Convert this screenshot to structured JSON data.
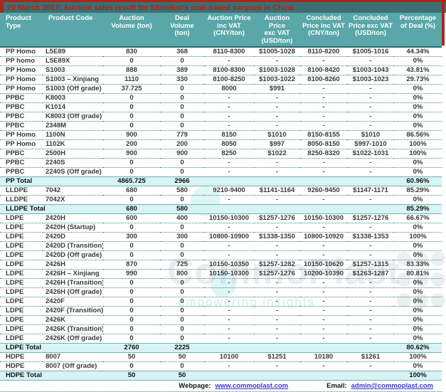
{
  "title": "20 March 2017: Auction sales result for Shenhua's coal-based cargoes in China",
  "colors": {
    "title_bg": "#3d6f72",
    "title_text": "#b32017",
    "header_bg": "#5aa7a9",
    "total_row_bg": "#d8f3f3",
    "red_border": "#a8271c",
    "link_color": "#3f36cf",
    "row_divider": "#3e8686"
  },
  "table": {
    "columns": [
      {
        "lines": [
          "Product",
          "Type"
        ]
      },
      {
        "lines": [
          "Product Code"
        ]
      },
      {
        "lines": [
          "Auction",
          "Volume (ton)"
        ]
      },
      {
        "lines": [
          "Deal",
          "Volume",
          "(ton)"
        ]
      },
      {
        "lines": [
          "Auction Price",
          "inc VAT",
          "(CNY/ton)"
        ]
      },
      {
        "lines": [
          "Auction",
          "Price",
          "exc VAT",
          "(USD/ton)"
        ]
      },
      {
        "lines": [
          "Concluded",
          "Price inc VAT",
          "(CNY/ton)"
        ]
      },
      {
        "lines": [
          "Concluded",
          "Price exc VAT",
          "(USD/ton)"
        ]
      },
      {
        "lines": [
          "Percentage",
          "of Deal (%)"
        ]
      }
    ],
    "rows": [
      {
        "type": "PP Homo",
        "code": "L5E89",
        "vals": [
          "830",
          "368",
          "8110-8300",
          "$1005-1028",
          "8110-8200",
          "$1005-1016",
          "44.34%"
        ]
      },
      {
        "type": "PP homo",
        "code": "L5E89X",
        "vals": [
          "0",
          "0",
          "-",
          "-",
          "-",
          "-",
          "0%"
        ]
      },
      {
        "type": "PP Homo",
        "code": "S1003",
        "vals": [
          "888",
          "389",
          "8100-8300",
          "$1003-1028",
          "8100-8420",
          "$1003-1043",
          "43.81%"
        ]
      },
      {
        "type": "PP Homo",
        "code": "S1003 – Xinjiang",
        "vals": [
          "1110",
          "330",
          "8100-8250",
          "$1003-1022",
          "8100-8260",
          "$1003-1023",
          "29.73%"
        ]
      },
      {
        "type": "PP Homo",
        "code": "S1003 (Off grade)",
        "vals": [
          "37.725",
          "0",
          "8000",
          "$991",
          "-",
          "-",
          "0%"
        ]
      },
      {
        "type": "PPBC",
        "code": "K8003",
        "vals": [
          "0",
          "0",
          "-",
          "-",
          "-",
          "-",
          "0%"
        ]
      },
      {
        "type": "PPBC",
        "code": "K1014",
        "vals": [
          "0",
          "0",
          "-",
          "-",
          "-",
          "-",
          "0%"
        ]
      },
      {
        "type": "PPBC",
        "code": "K8003 (Off grade)",
        "vals": [
          "0",
          "0",
          "-",
          "-",
          "-",
          "-",
          "0%"
        ]
      },
      {
        "type": "PPBC",
        "code": "2348M",
        "vals": [
          "0",
          "0",
          "-",
          "-",
          "-",
          "-",
          "0%"
        ]
      },
      {
        "type": "PP Homo",
        "code": "1100N",
        "vals": [
          "900",
          "779",
          "8150",
          "$1010",
          "8150-8155",
          "$1010",
          "86.56%"
        ]
      },
      {
        "type": "PP Homo",
        "code": "1102K",
        "vals": [
          "200",
          "200",
          "8050",
          "$997",
          "8050-8150",
          "$997-1010",
          "100%"
        ]
      },
      {
        "type": "PPBC",
        "code": "2500H",
        "vals": [
          "900",
          "900",
          "8250",
          "$1022",
          "8250-8320",
          "$1022-1031",
          "100%"
        ]
      },
      {
        "type": "PPBC",
        "code": "2240S",
        "vals": [
          "0",
          "0",
          "-",
          "-",
          "-",
          "-",
          "0%"
        ]
      },
      {
        "type": "PPBC",
        "code": "2240S (Off grade)",
        "vals": [
          "0",
          "0",
          "-",
          "-",
          "-",
          "-",
          "0%"
        ]
      },
      {
        "total": true,
        "label": "PP Total",
        "vals": [
          "4865.725",
          "2966",
          "",
          "",
          "",
          "",
          "60.96%"
        ]
      },
      {
        "type": "LLDPE",
        "code": "7042",
        "vals": [
          "680",
          "580",
          "9210-9400",
          "$1141-1164",
          "9260-9450",
          "$1147-1171",
          "85.29%"
        ]
      },
      {
        "type": "LLDPE",
        "code": "7042X",
        "vals": [
          "0",
          "0",
          "-",
          "-",
          "-",
          "-",
          "0%"
        ]
      },
      {
        "total": true,
        "label": "LLDPE Total",
        "vals": [
          "680",
          "580",
          "",
          "",
          "",
          "",
          "85.29%"
        ]
      },
      {
        "type": "LDPE",
        "code": "2420H",
        "vals": [
          "600",
          "400",
          "10150-10300",
          "$1257-1276",
          "10150-10300",
          "$1257-1276",
          "66.67%"
        ]
      },
      {
        "type": "LDPE",
        "code": "2420H (Startup)",
        "vals": [
          "0",
          "0",
          "-",
          "-",
          "-",
          "-",
          "0%"
        ]
      },
      {
        "type": "LDPE",
        "code": "2420D",
        "vals": [
          "300",
          "300",
          "10800-10900",
          "$1338-1350",
          "10800-10920",
          "$1338-1353",
          "100%"
        ]
      },
      {
        "type": "LDPE",
        "code": "2420D (Transition)",
        "vals": [
          "0",
          "0",
          "-",
          "-",
          "-",
          "-",
          "0%"
        ]
      },
      {
        "type": "LDPE",
        "code": "2420D (Off grade)",
        "vals": [
          "0",
          "0",
          "-",
          "-",
          "-",
          "-",
          "0%"
        ]
      },
      {
        "type": "LDPE",
        "code": "2426H",
        "vals": [
          "870",
          "725",
          "10150-10350",
          "$1257-1282",
          "10150-10620",
          "$1257-1315",
          "83.33%"
        ]
      },
      {
        "type": "LDPE",
        "code": "2426H – Xinjiang",
        "vals": [
          "990",
          "800",
          "10150-10300",
          "$1257-1276",
          "10200-10390",
          "$1263-1287",
          "80.81%"
        ]
      },
      {
        "type": "LDPE",
        "code": "2426H (Transition)",
        "vals": [
          "0",
          "0",
          "-",
          "-",
          "-",
          "-",
          "0%"
        ]
      },
      {
        "type": "LDPE",
        "code": "2426H (Off grade)",
        "vals": [
          "0",
          "0",
          "-",
          "-",
          "-",
          "-",
          "0%"
        ]
      },
      {
        "type": "LDPE",
        "code": "2420F",
        "vals": [
          "0",
          "0",
          "-",
          "-",
          "-",
          "-",
          "0%"
        ]
      },
      {
        "type": "LDPE",
        "code": "2420F (Transition)",
        "vals": [
          "0",
          "0",
          "-",
          "-",
          "-",
          "-",
          "0%"
        ]
      },
      {
        "type": "LDPE",
        "code": "2426K",
        "vals": [
          "0",
          "0",
          "-",
          "-",
          "-",
          "-",
          "0%"
        ]
      },
      {
        "type": "LDPE",
        "code": "2426K (Transition)",
        "vals": [
          "0",
          "0",
          "-",
          "-",
          "-",
          "-",
          "0%"
        ]
      },
      {
        "type": "LDPE",
        "code": "2426K (Off grade)",
        "vals": [
          "0",
          "0",
          "-",
          "-",
          "-",
          "-",
          "0%"
        ]
      },
      {
        "total": true,
        "label": "LDPE Total",
        "vals": [
          "2760",
          "2225",
          "",
          "",
          "",
          "",
          "80.62%"
        ]
      },
      {
        "type": "HDPE",
        "code": "8007",
        "vals": [
          "50",
          "50",
          "10100",
          "$1251",
          "10180",
          "$1261",
          "100%"
        ]
      },
      {
        "type": "HDPE",
        "code": "8007 (Off grade)",
        "vals": [
          "0",
          "0",
          "-",
          "-",
          "-",
          "-",
          "0%"
        ]
      },
      {
        "total": true,
        "label": "HDPE Total",
        "vals": [
          "50",
          "50",
          "",
          "",
          "",
          "",
          "100%"
        ]
      }
    ]
  },
  "footer": {
    "webpage_label": "Webpage:",
    "webpage_url": "www.commoplast.com",
    "email_label": "Email:",
    "email": "admin@commoplast.com"
  },
  "watermark": {
    "text": "CommoPlast",
    "tagline": "empowering insights"
  }
}
